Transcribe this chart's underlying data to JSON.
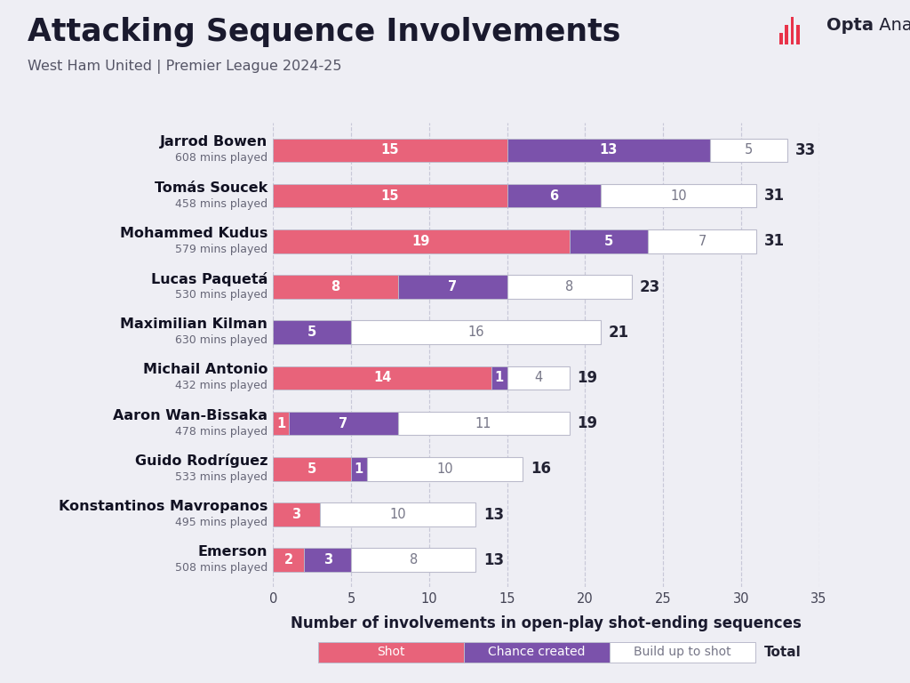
{
  "title": "Attacking Sequence Involvements",
  "subtitle": "West Ham United | Premier League 2024-25",
  "xlabel": "Number of involvements in open-play shot-ending sequences",
  "players": [
    {
      "name": "Jarrod Bowen",
      "mins": "608 mins played",
      "shot": 15,
      "chance": 13,
      "buildup": 5,
      "total": 33
    },
    {
      "name": "Tomás Soucek",
      "mins": "458 mins played",
      "shot": 15,
      "chance": 6,
      "buildup": 10,
      "total": 31
    },
    {
      "name": "Mohammed Kudus",
      "mins": "579 mins played",
      "shot": 19,
      "chance": 5,
      "buildup": 7,
      "total": 31
    },
    {
      "name": "Lucas Paquetá",
      "mins": "530 mins played",
      "shot": 8,
      "chance": 7,
      "buildup": 8,
      "total": 23
    },
    {
      "name": "Maximilian Kilman",
      "mins": "630 mins played",
      "shot": 0,
      "chance": 5,
      "buildup": 16,
      "total": 21
    },
    {
      "name": "Michail Antonio",
      "mins": "432 mins played",
      "shot": 14,
      "chance": 1,
      "buildup": 4,
      "total": 19
    },
    {
      "name": "Aaron Wan-Bissaka",
      "mins": "478 mins played",
      "shot": 1,
      "chance": 7,
      "buildup": 11,
      "total": 19
    },
    {
      "name": "Guido Rodríguez",
      "mins": "533 mins played",
      "shot": 5,
      "chance": 1,
      "buildup": 10,
      "total": 16
    },
    {
      "name": "Konstantinos Mavropanos",
      "mins": "495 mins played",
      "shot": 3,
      "chance": 0,
      "buildup": 10,
      "total": 13
    },
    {
      "name": "Emerson",
      "mins": "508 mins played",
      "shot": 2,
      "chance": 3,
      "buildup": 8,
      "total": 13
    }
  ],
  "colors": {
    "shot": "#E8637A",
    "chance": "#7B52AB",
    "buildup": "#FFFFFF",
    "background": "#EEEEF4",
    "bar_edge": "#BBBBCC",
    "grid": "#C8C8D8",
    "title": "#1a1a2e",
    "subtitle": "#555566",
    "player_name": "#111122",
    "mins": "#666677",
    "total_label": "#222233",
    "bar_text_dark": "#777788",
    "opta_text": "#222233",
    "opta_red": "#E8334A"
  },
  "xlim": [
    0,
    35
  ],
  "xticks": [
    0,
    5,
    10,
    15,
    20,
    25,
    30,
    35
  ],
  "bar_height": 0.52,
  "title_fontsize": 25,
  "subtitle_fontsize": 11.5,
  "xlabel_fontsize": 12,
  "player_name_fontsize": 11.5,
  "mins_fontsize": 9,
  "bar_label_fontsize": 10.5,
  "total_fontsize": 12,
  "tick_fontsize": 10.5,
  "legend_shot_label": "Shot",
  "legend_chance_label": "Chance created",
  "legend_buildup_label": "Build up to shot",
  "legend_total_label": "Total"
}
